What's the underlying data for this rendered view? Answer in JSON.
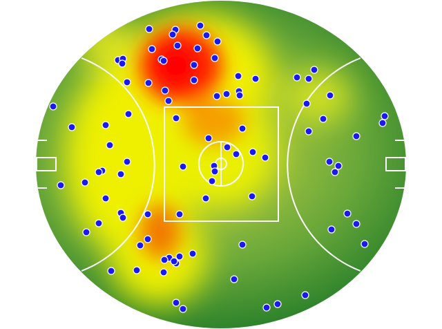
{
  "chart_data": {
    "type": "scatter",
    "color": "#1a1aee",
    "x": [
      216,
      254,
      250,
      290,
      299,
      315,
      220,
      257,
      286,
      171,
      178,
      177,
      234,
      237,
      311,
      281,
      345,
      370,
      184,
      215,
      281,
      239,
      244,
      314,
      328,
      346,
      347,
      430,
      447,
      455,
      444,
      478,
      77,
      104,
      153,
      186,
      255,
      351,
      468,
      557,
      554,
      447,
      516,
      302,
      159,
      329,
      342,
      366,
      384,
      184,
      265,
      310,
      311,
      307,
      148,
      143,
      175,
      123,
      88,
      477,
      490,
      485,
      298,
      365,
      153,
      175,
      178,
      214,
      260,
      503,
      516,
      480,
      143,
      125,
      214,
      203,
      351,
      528,
      260,
      279,
      245,
      238,
      255,
      252,
      161,
      198,
      237,
      339,
      442,
      402,
      386,
      255,
      265
    ],
    "y": [
      42,
      43,
      50,
      37,
      51,
      60,
      71,
      66,
      70,
      87,
      85,
      92,
      86,
      88,
      84,
      94,
      110,
      114,
      119,
      120,
      116,
      131,
      146,
      139,
      136,
      132,
      138,
      112,
      114,
      101,
      150,
      138,
      154,
      184,
      181,
      165,
      171,
      186,
      172,
      168,
      178,
      190,
      197,
      200,
      210,
      213,
      223,
      220,
      228,
      234,
      241,
      240,
      248,
      262,
      247,
      249,
      252,
      264,
      268,
      234,
      240,
      249,
      287,
      284,
      287,
      308,
      315,
      310,
      310,
      309,
      324,
      332,
      323,
      336,
      346,
      355,
      354,
      353,
      371,
      367,
      373,
      376,
      381,
      378,
      392,
      391,
      394,
      404,
      427,
      440,
      445,
      438,
      447
    ]
  }
}
